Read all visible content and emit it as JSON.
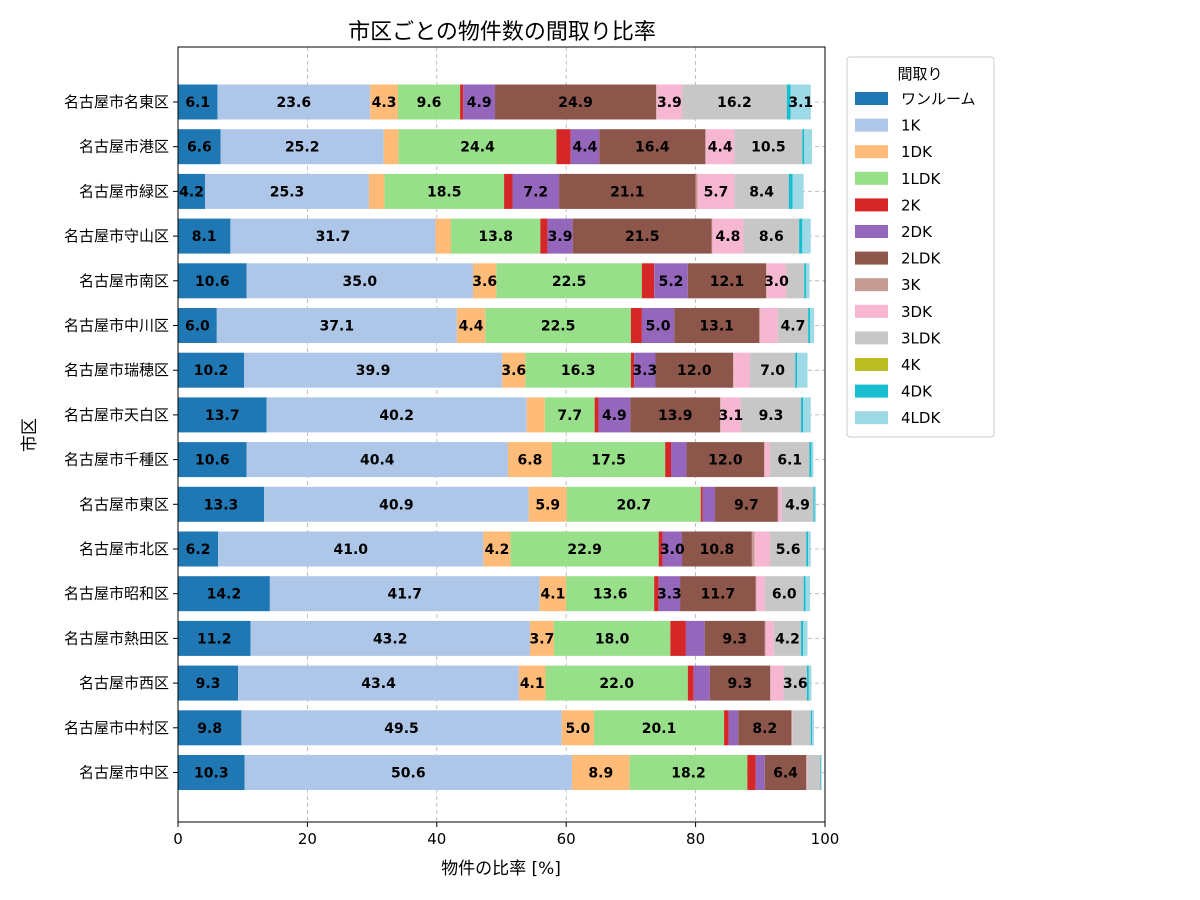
{
  "chart_data": {
    "type": "bar",
    "orientation": "horizontal",
    "stacked": true,
    "title": "市区ごとの物件数の間取り比率",
    "xlabel": "物件の比率 [%]",
    "ylabel": "市区",
    "xlim": [
      0,
      100
    ],
    "xticks": [
      "0",
      "20",
      "40",
      "60",
      "80",
      "100"
    ],
    "grid": true,
    "legend_title": "間取り",
    "legend_position": "outside-top-right",
    "categories": [
      "名古屋市名東区",
      "名古屋市港区",
      "名古屋市緑区",
      "名古屋市守山区",
      "名古屋市南区",
      "名古屋市中川区",
      "名古屋市瑞穂区",
      "名古屋市天白区",
      "名古屋市千種区",
      "名古屋市東区",
      "名古屋市北区",
      "名古屋市昭和区",
      "名古屋市熱田区",
      "名古屋市西区",
      "名古屋市中村区",
      "名古屋市中区"
    ],
    "series": [
      {
        "name": "ワンルーム",
        "color": "#1f77b4",
        "values": [
          6.1,
          6.6,
          4.2,
          8.1,
          10.6,
          6.0,
          10.2,
          13.7,
          10.6,
          13.3,
          6.2,
          14.2,
          11.2,
          9.3,
          9.8,
          10.3
        ]
      },
      {
        "name": "1K",
        "color": "#aec7e8",
        "values": [
          23.6,
          25.2,
          25.3,
          31.7,
          35.0,
          37.1,
          39.9,
          40.2,
          40.4,
          40.9,
          41.0,
          41.7,
          43.2,
          43.4,
          49.5,
          50.6
        ]
      },
      {
        "name": "1DK",
        "color": "#ffbb78",
        "values": [
          4.3,
          2.3,
          2.4,
          2.4,
          3.6,
          4.4,
          3.6,
          2.8,
          6.8,
          5.9,
          4.2,
          4.1,
          3.7,
          4.1,
          5.0,
          8.9
        ]
      },
      {
        "name": "1LDK",
        "color": "#98df8a",
        "values": [
          9.6,
          24.4,
          18.5,
          13.8,
          22.5,
          22.5,
          16.3,
          7.7,
          17.5,
          20.7,
          22.9,
          13.6,
          18.0,
          22.0,
          20.1,
          18.2
        ]
      },
      {
        "name": "2K",
        "color": "#d62728",
        "values": [
          0.5,
          2.2,
          1.3,
          1.1,
          1.9,
          1.7,
          0.5,
          0.6,
          0.9,
          0.3,
          0.6,
          0.7,
          2.4,
          0.9,
          0.7,
          1.3
        ]
      },
      {
        "name": "2DK",
        "color": "#9467bd",
        "values": [
          4.9,
          4.4,
          7.2,
          3.9,
          5.2,
          5.0,
          3.3,
          4.9,
          2.4,
          1.9,
          3.0,
          3.3,
          2.9,
          2.5,
          1.5,
          1.4
        ]
      },
      {
        "name": "2LDK",
        "color": "#8c564b",
        "values": [
          24.9,
          16.4,
          21.1,
          21.5,
          12.1,
          13.1,
          12.0,
          13.9,
          12.0,
          9.7,
          10.8,
          11.7,
          9.3,
          9.3,
          8.2,
          6.4
        ]
      },
      {
        "name": "3K",
        "color": "#c49c94",
        "values": [
          0.1,
          0.1,
          0.3,
          0.1,
          0.1,
          0.2,
          0.1,
          0.1,
          0.1,
          0.1,
          0.4,
          0.1,
          0.1,
          0.1,
          0.1,
          0.1
        ]
      },
      {
        "name": "3DK",
        "color": "#f7b6d2",
        "values": [
          3.9,
          4.4,
          5.7,
          4.8,
          3.0,
          2.7,
          2.5,
          3.1,
          0.8,
          0.5,
          2.4,
          1.3,
          1.3,
          2.0,
          0.1,
          0.1
        ]
      },
      {
        "name": "3LDK",
        "color": "#c7c7c7",
        "values": [
          16.2,
          10.5,
          8.4,
          8.6,
          2.8,
          4.7,
          7.0,
          9.3,
          6.1,
          4.9,
          5.6,
          6.0,
          4.2,
          3.6,
          2.8,
          2.0
        ]
      },
      {
        "name": "4K",
        "color": "#bcbd22",
        "values": [
          0.0,
          0.0,
          0.0,
          0.0,
          0.0,
          0.0,
          0.0,
          0.0,
          0.0,
          0.0,
          0.0,
          0.0,
          0.0,
          0.0,
          0.0,
          0.0
        ]
      },
      {
        "name": "4DK",
        "color": "#17becf",
        "values": [
          0.6,
          0.3,
          0.6,
          0.5,
          0.3,
          0.3,
          0.3,
          0.3,
          0.3,
          0.2,
          0.3,
          0.3,
          0.3,
          0.3,
          0.2,
          0.1
        ]
      },
      {
        "name": "4LDK",
        "color": "#9edae5",
        "values": [
          3.1,
          1.2,
          1.7,
          1.3,
          0.5,
          0.6,
          1.6,
          1.2,
          0.3,
          0.2,
          0.4,
          0.7,
          0.7,
          0.4,
          0.3,
          0.1
        ]
      }
    ],
    "data_label_min": 3.0
  }
}
